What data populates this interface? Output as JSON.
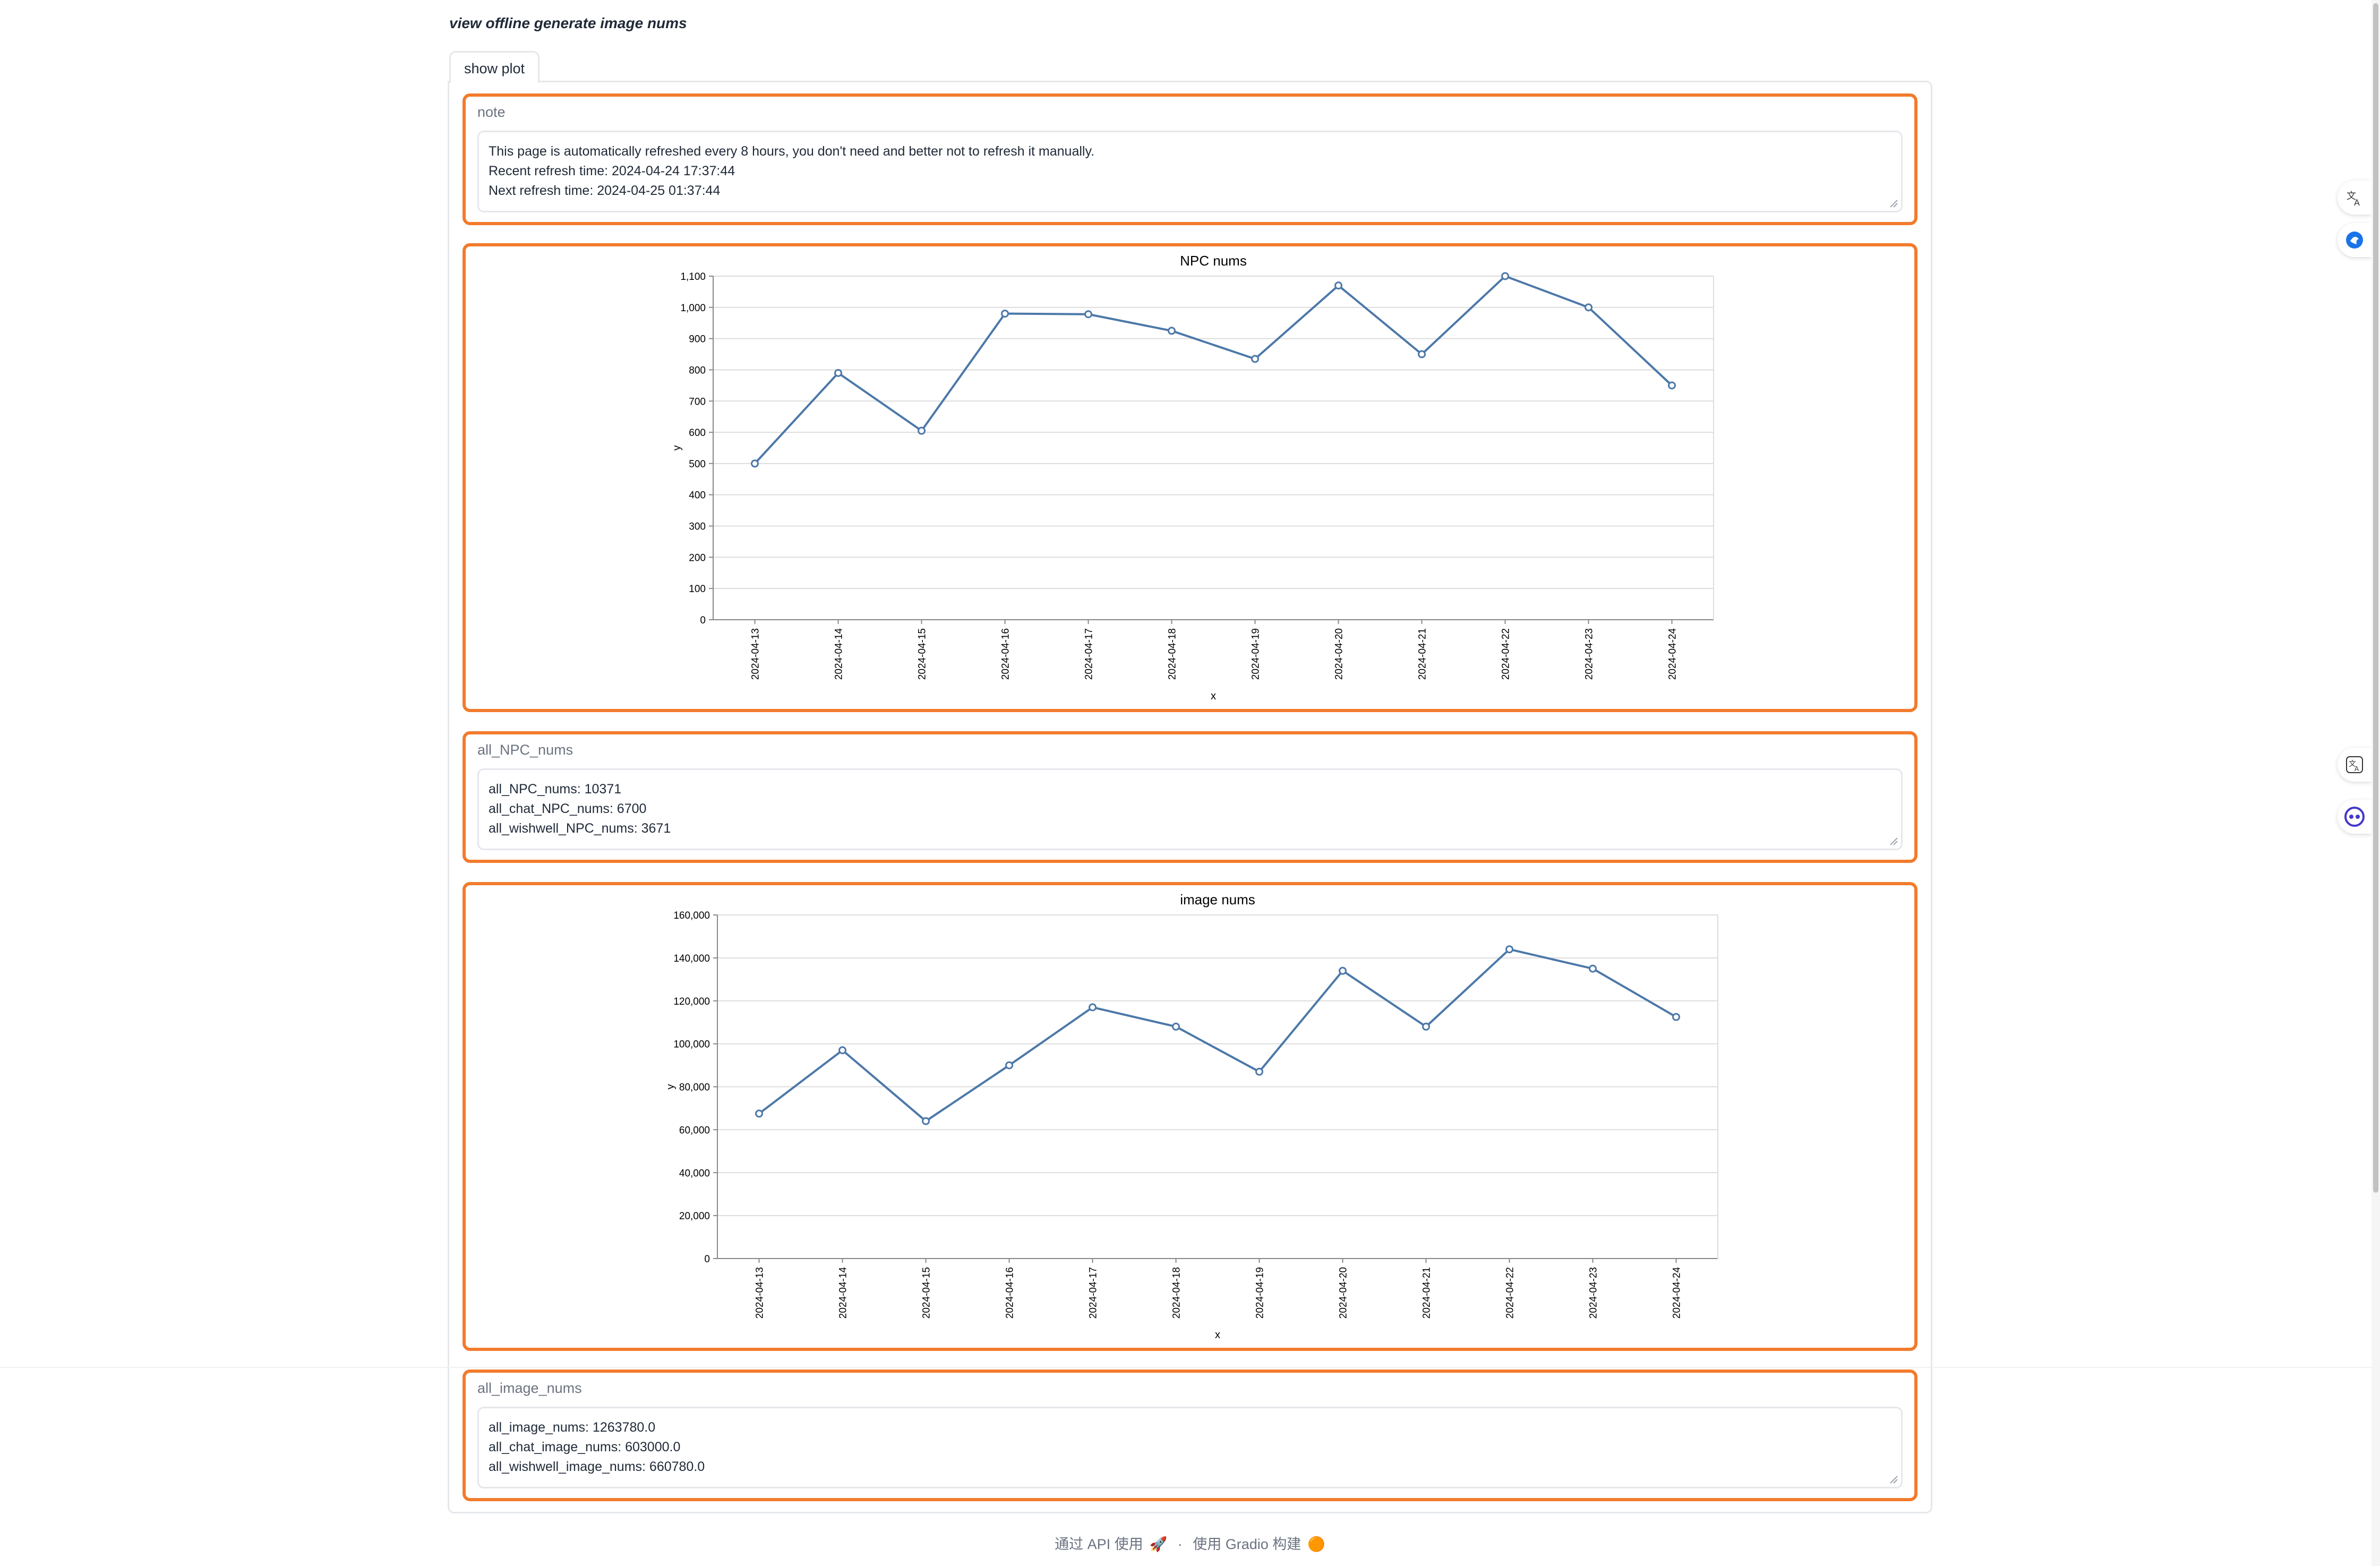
{
  "page": {
    "title": "view offline generate image nums",
    "tab_label": "show plot"
  },
  "note": {
    "label": "note",
    "lines": [
      "This page is automatically refreshed every 8 hours, you don't need and better not to refresh it manually.",
      "Recent refresh time: 2024-04-24 17:37:44",
      "Next refresh time: 2024-04-25 01:37:44"
    ]
  },
  "all_npc": {
    "label": "all_NPC_nums",
    "lines": [
      "all_NPC_nums: 10371",
      "all_chat_NPC_nums: 6700",
      "all_wishwell_NPC_nums: 3671"
    ]
  },
  "all_image": {
    "label": "all_image_nums",
    "lines": [
      "all_image_nums: 1263780.0",
      "all_chat_image_nums: 603000.0",
      "all_wishwell_image_nums: 660780.0"
    ]
  },
  "chart_data": [
    {
      "type": "line",
      "title": "NPC nums",
      "xlabel": "x",
      "ylabel": "y",
      "x": [
        "2024-04-13",
        "2024-04-14",
        "2024-04-15",
        "2024-04-16",
        "2024-04-17",
        "2024-04-18",
        "2024-04-19",
        "2024-04-20",
        "2024-04-21",
        "2024-04-22",
        "2024-04-23",
        "2024-04-24"
      ],
      "values": [
        500,
        790,
        605,
        980,
        978,
        925,
        835,
        1070,
        850,
        1100,
        1000,
        750
      ],
      "ylim": [
        0,
        1100
      ],
      "yticks": [
        0,
        100,
        200,
        300,
        400,
        500,
        600,
        700,
        800,
        900,
        1000,
        1100
      ],
      "ytick_labels": [
        "0",
        "100",
        "200",
        "300",
        "400",
        "500",
        "600",
        "700",
        "800",
        "900",
        "1,000",
        "1,100"
      ],
      "grid": true,
      "color": "#4c78a8"
    },
    {
      "type": "line",
      "title": "image nums",
      "xlabel": "x",
      "ylabel": "y",
      "x": [
        "2024-04-13",
        "2024-04-14",
        "2024-04-15",
        "2024-04-16",
        "2024-04-17",
        "2024-04-18",
        "2024-04-19",
        "2024-04-20",
        "2024-04-21",
        "2024-04-22",
        "2024-04-23",
        "2024-04-24"
      ],
      "values": [
        67500,
        97000,
        64000,
        90000,
        117000,
        108000,
        87000,
        134000,
        108000,
        144000,
        135000,
        112500
      ],
      "ylim": [
        0,
        160000
      ],
      "yticks": [
        0,
        20000,
        40000,
        60000,
        80000,
        100000,
        120000,
        140000,
        160000
      ],
      "ytick_labels": [
        "0",
        "20,000",
        "40,000",
        "60,000",
        "80,000",
        "100,000",
        "120,000",
        "140,000",
        "160,000"
      ],
      "grid": true,
      "color": "#4c78a8"
    }
  ],
  "footer": {
    "api_text": "通过 API 使用",
    "separator": "·",
    "gradio_text": "使用 Gradio 构建"
  },
  "side_tools": [
    {
      "icon": "translate-icon"
    },
    {
      "icon": "bird-icon"
    },
    {
      "icon": "translate-icon"
    },
    {
      "icon": "assistant-icon"
    }
  ]
}
